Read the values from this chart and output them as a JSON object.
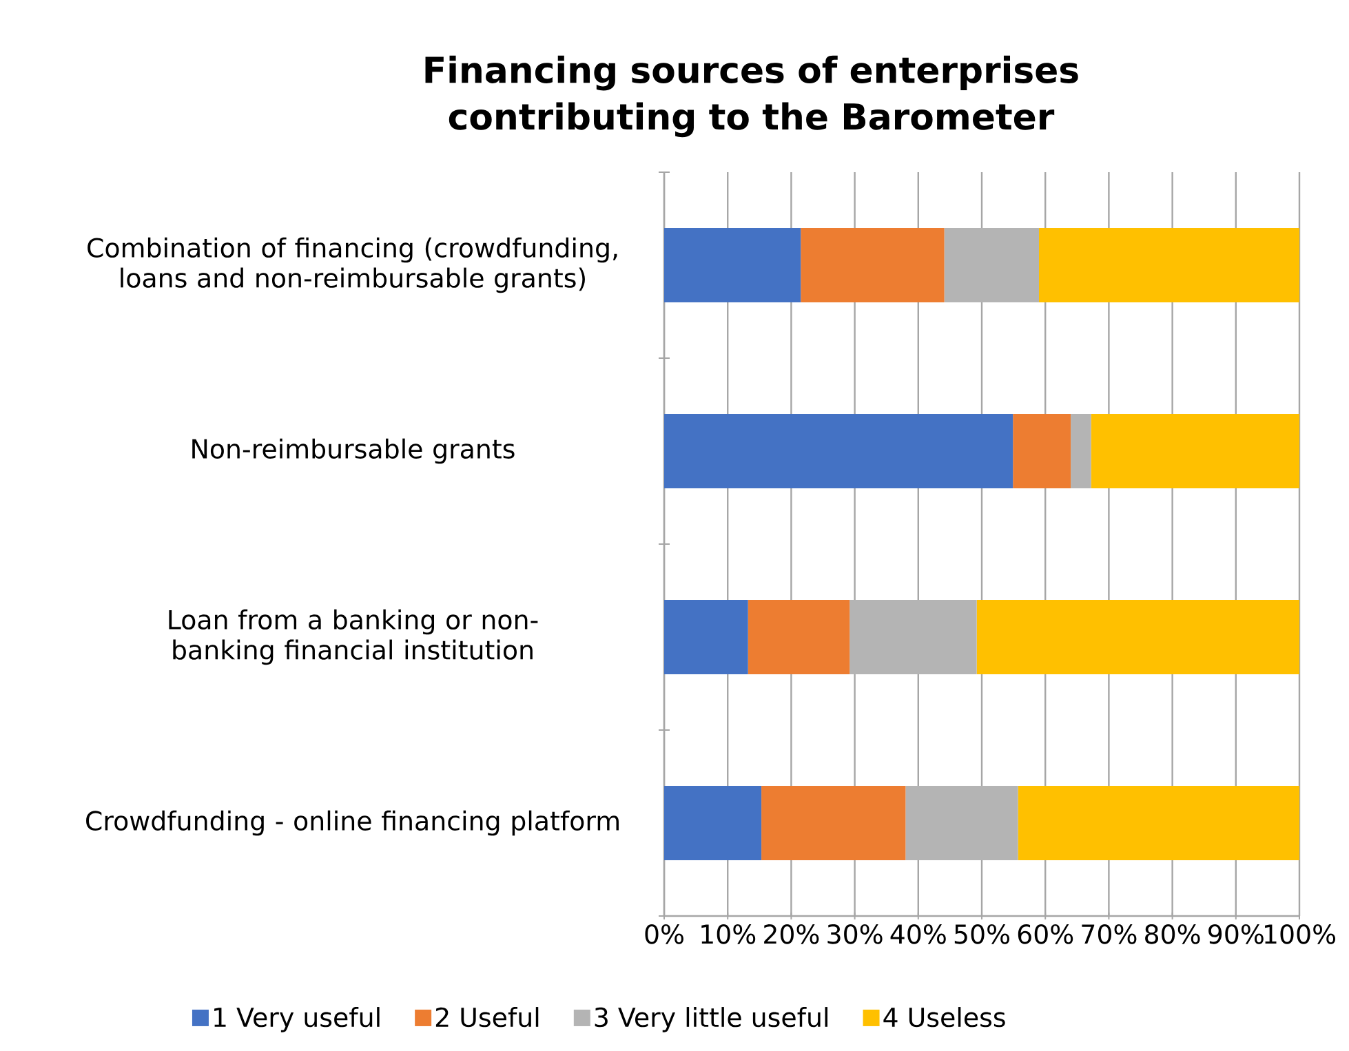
{
  "chart_data": {
    "type": "bar",
    "orientation": "horizontal",
    "stacked": true,
    "title": "Financing sources of enterprises contributing to the Barometer",
    "categories": [
      "Combination of financing (crowdfunding, loans and non-reimbursable grants)",
      "Non-reimbursable grants",
      "Loan from a banking or non-banking financial institution",
      "Crowdfunding - online financing platform"
    ],
    "series": [
      {
        "name": "1 Very useful",
        "color": "#4472c4",
        "values": [
          21.5,
          54.9,
          13.2,
          15.3
        ]
      },
      {
        "name": "2 Useful",
        "color": "#ed7d31",
        "values": [
          22.6,
          9.1,
          16.0,
          22.7
        ]
      },
      {
        "name": "3 Very little useful",
        "color": "#b4b4b4",
        "values": [
          14.9,
          3.2,
          20.0,
          17.7
        ]
      },
      {
        "name": "4 Useless",
        "color": "#ffc000",
        "values": [
          41.0,
          32.8,
          50.8,
          44.3
        ]
      }
    ],
    "xlim": [
      0,
      100
    ],
    "xticks": [
      {
        "value": 0,
        "label": "0%"
      },
      {
        "value": 10,
        "label": "10%"
      },
      {
        "value": 20,
        "label": "20%"
      },
      {
        "value": 30,
        "label": "30%"
      },
      {
        "value": 40,
        "label": "40%"
      },
      {
        "value": 50,
        "label": "50%"
      },
      {
        "value": 60,
        "label": "60%"
      },
      {
        "value": 70,
        "label": "70%"
      },
      {
        "value": 80,
        "label": "80%"
      },
      {
        "value": 90,
        "label": "90%"
      },
      {
        "value": 100,
        "label": "100%"
      }
    ],
    "grid": "x",
    "legend": "bottom"
  }
}
